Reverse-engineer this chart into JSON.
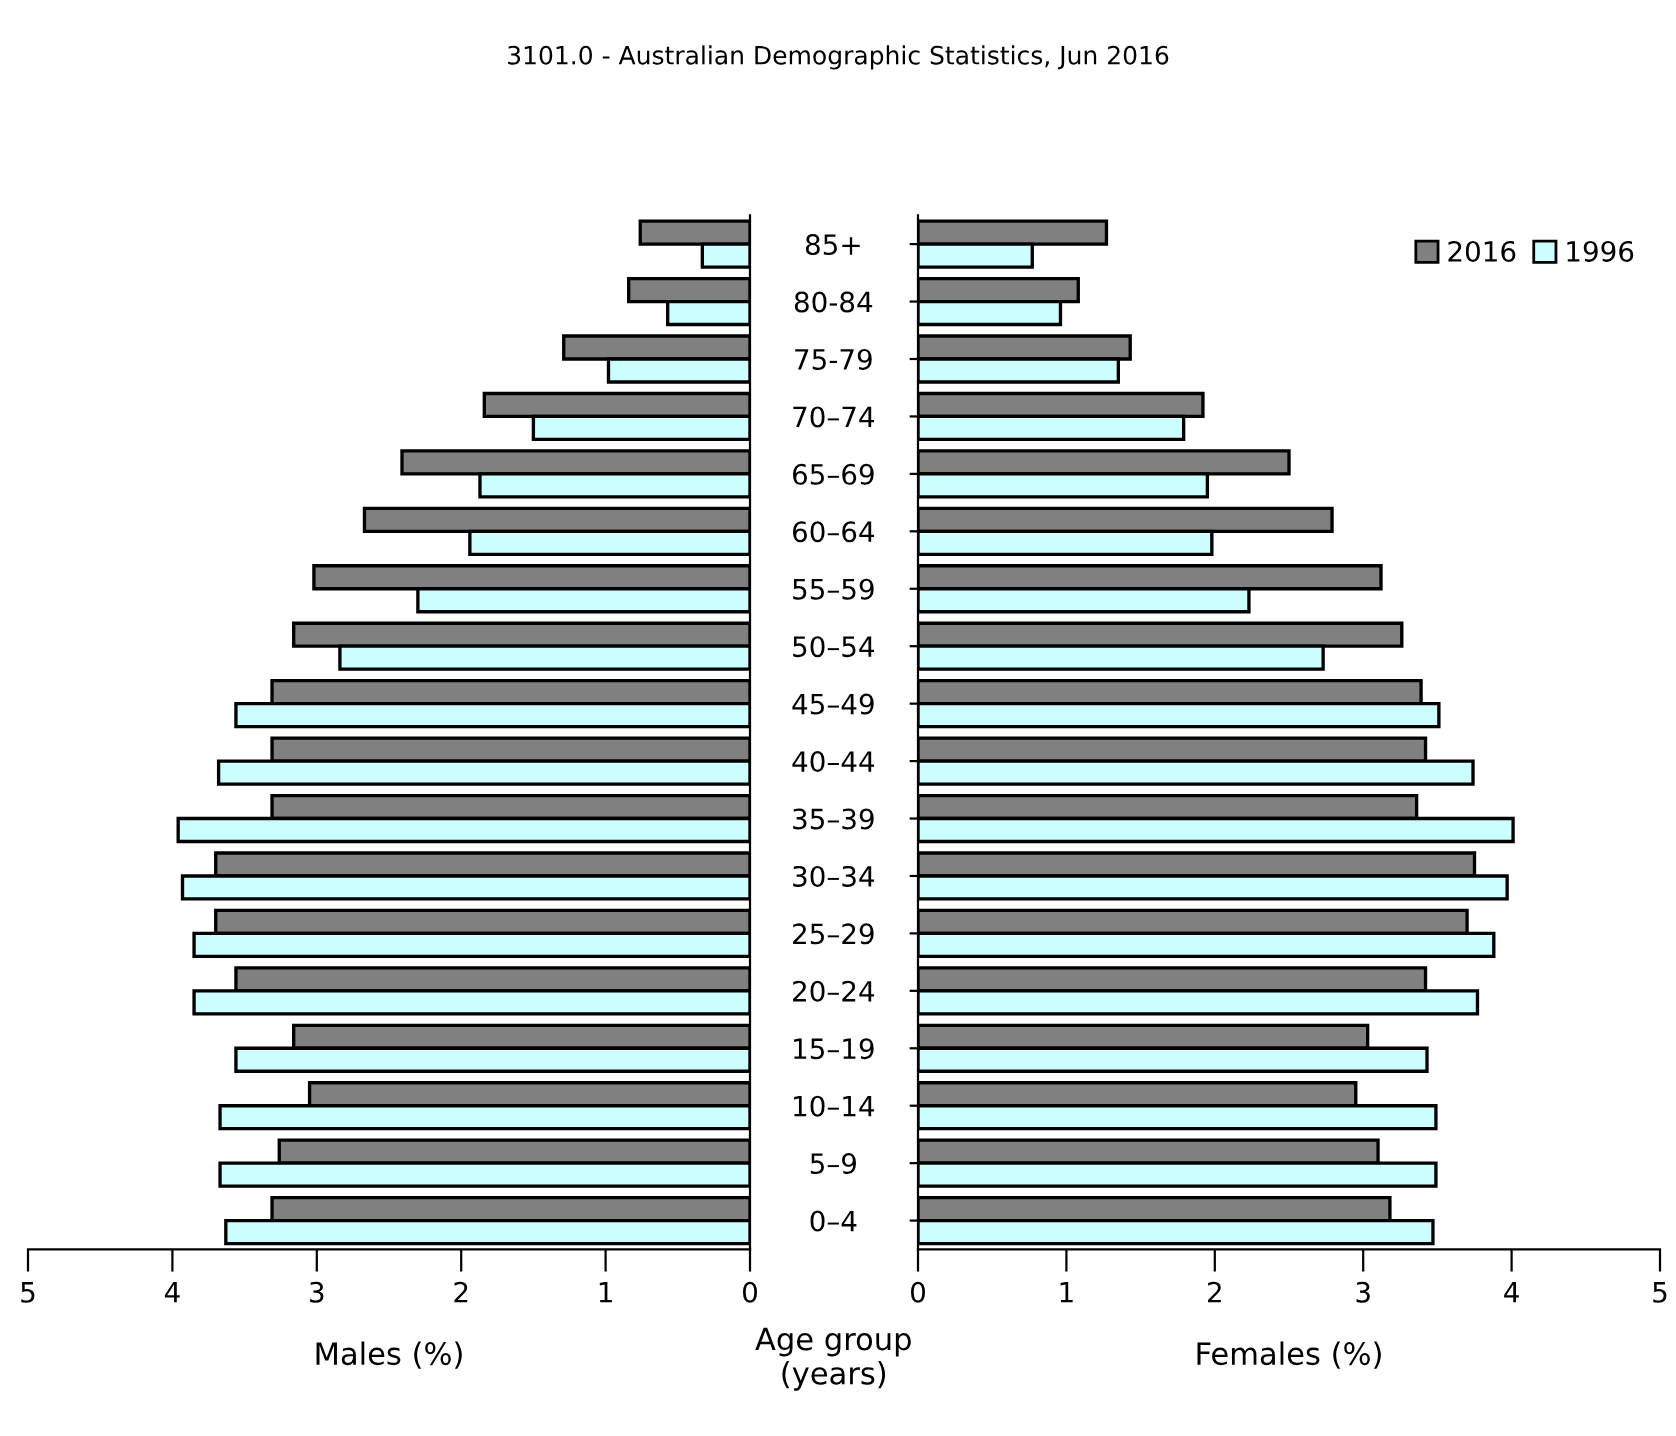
{
  "chart_data": [
    {
      "type": "bar",
      "orientation": "horizontal",
      "title": "3101.0 - Australian Demographic Statistics, Jun 2016",
      "xlabel": "Males (%)",
      "ylabel": "Age group\n(years)",
      "categories": [
        "85+",
        "80-84",
        "75-79",
        "70–74",
        "65–69",
        "60–64",
        "55–59",
        "50–54",
        "45–49",
        "40–44",
        "35–39",
        "30–34",
        "25–29",
        "20–24",
        "15–19",
        "10–14",
        "5–9",
        "0–4"
      ],
      "series": [
        {
          "color": "#808080",
          "values": [
            0.76,
            0.84,
            1.29,
            1.84,
            2.41,
            2.67,
            3.02,
            3.16,
            3.31,
            3.31,
            3.31,
            3.7,
            3.7,
            3.56,
            3.16,
            3.05,
            3.26,
            3.31
          ]
        },
        {
          "color": "#ccffff",
          "values": [
            0.33,
            0.57,
            0.98,
            1.5,
            1.87,
            1.94,
            2.3,
            2.84,
            3.56,
            3.68,
            3.96,
            3.93,
            3.85,
            3.85,
            3.56,
            3.67,
            3.67,
            3.63
          ]
        }
      ],
      "xlim": [
        5,
        0
      ],
      "xticks": [
        5,
        4,
        3,
        2,
        1,
        0
      ],
      "grid": false,
      "legend": false
    },
    {
      "type": "bar",
      "orientation": "horizontal",
      "xlabel": "Females (%)",
      "tick_labels": "x",
      "categories": [
        "85+",
        "80-84",
        "75-79",
        "70–74",
        "65–69",
        "60–64",
        "55–59",
        "50–54",
        "45–49",
        "40–44",
        "35–39",
        "30–34",
        "25–29",
        "20–24",
        "15–19",
        "10–14",
        "5–9",
        "0–4"
      ],
      "series": [
        {
          "name": "2016",
          "color": "#808080",
          "values": [
            1.27,
            1.08,
            1.43,
            1.92,
            2.5,
            2.79,
            3.12,
            3.26,
            3.39,
            3.42,
            3.36,
            3.75,
            3.7,
            3.42,
            3.03,
            2.95,
            3.1,
            3.18
          ]
        },
        {
          "name": "1996",
          "color": "#ccffff",
          "values": [
            0.77,
            0.96,
            1.35,
            1.79,
            1.95,
            1.98,
            2.23,
            2.73,
            3.51,
            3.74,
            4.01,
            3.97,
            3.88,
            3.77,
            3.43,
            3.49,
            3.49,
            3.47
          ]
        }
      ],
      "xlim": [
        0,
        5
      ],
      "xticks": [
        0,
        1,
        2,
        3,
        4,
        5
      ],
      "grid": false,
      "legend": "top right"
    }
  ]
}
